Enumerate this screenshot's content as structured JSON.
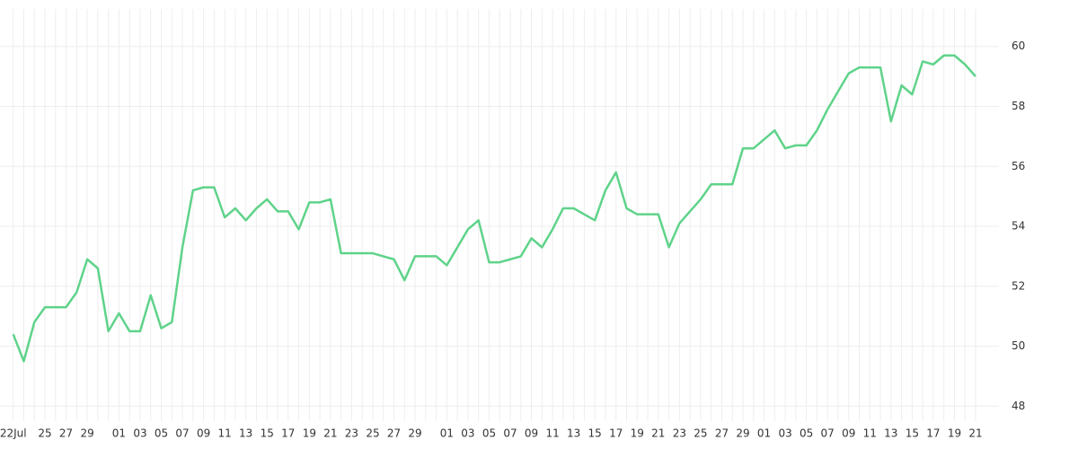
{
  "chart_data": {
    "type": "line",
    "categories": [
      "22Jul",
      null,
      null,
      "25",
      null,
      "27",
      null,
      "29",
      null,
      null,
      "01",
      null,
      "03",
      null,
      "05",
      null,
      "07",
      null,
      "09",
      null,
      "11",
      null,
      "13",
      null,
      "15",
      null,
      "17",
      null,
      "19",
      null,
      "21",
      null,
      "23",
      null,
      "25",
      null,
      "27",
      null,
      "29",
      null,
      null,
      "01",
      null,
      "03",
      null,
      "05",
      null,
      "07",
      null,
      "09",
      null,
      "11",
      null,
      "13",
      null,
      "15",
      null,
      "17",
      null,
      "19",
      null,
      "21",
      null,
      "23",
      null,
      "25",
      null,
      "27",
      null,
      "29",
      null,
      "01",
      null,
      "03",
      null,
      "05",
      null,
      "07",
      null,
      "09",
      null,
      "11",
      null,
      "13",
      null,
      "15",
      null,
      "17",
      null,
      "19",
      null,
      "21"
    ],
    "series": [
      {
        "color": "#5fd38a",
        "values": [
          50.4,
          49.5,
          50.8,
          51.3,
          51.3,
          51.3,
          51.8,
          52.9,
          52.6,
          50.5,
          51.1,
          50.5,
          50.5,
          51.7,
          50.6,
          50.8,
          53.3,
          55.2,
          55.3,
          55.3,
          54.3,
          54.6,
          54.2,
          54.6,
          54.9,
          54.5,
          54.5,
          53.9,
          54.8,
          54.8,
          54.9,
          53.1,
          53.1,
          53.1,
          53.1,
          53.0,
          52.9,
          52.2,
          53.0,
          53.0,
          53.0,
          52.7,
          53.3,
          53.9,
          54.2,
          52.8,
          52.8,
          52.9,
          53.0,
          53.6,
          53.3,
          53.9,
          54.6,
          54.6,
          54.4,
          54.2,
          55.2,
          55.8,
          54.6,
          54.4,
          54.4,
          54.4,
          53.3,
          54.1,
          54.5,
          54.9,
          55.4,
          55.4,
          55.4,
          56.6,
          56.6,
          56.9,
          57.2,
          56.6,
          56.7,
          56.7,
          57.2,
          57.9,
          58.5,
          59.1,
          59.3,
          59.3,
          59.3,
          57.5,
          58.7,
          58.4,
          59.5,
          59.4,
          59.7,
          59.7,
          59.4,
          59.0
        ]
      }
    ],
    "ylim": [
      47.5,
      61.25
    ],
    "yticks": [
      48,
      50,
      52,
      54,
      56,
      58,
      60
    ],
    "grid": true
  }
}
